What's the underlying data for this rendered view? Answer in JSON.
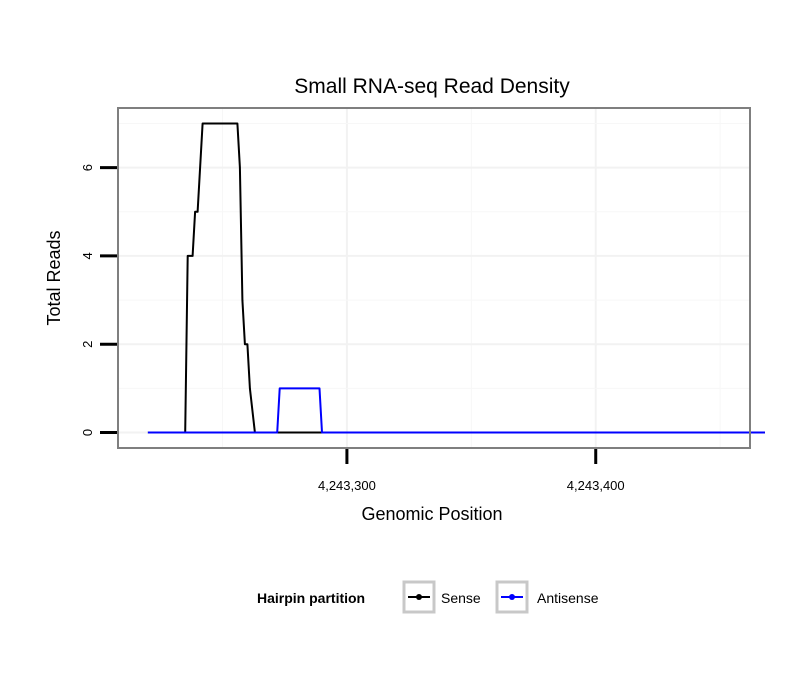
{
  "chart_data": {
    "type": "line",
    "title": "Small RNA-seq Read Density",
    "xlabel": "Genomic Position",
    "ylabel": "Total Reads",
    "xlim": [
      4243208,
      4243462
    ],
    "ylim": [
      -0.35,
      7.35
    ],
    "x_ticks": [
      4243300,
      4243400
    ],
    "x_tick_labels": [
      "4,243,300",
      "4,243,400"
    ],
    "y_ticks": [
      0,
      2,
      4,
      6
    ],
    "y_tick_labels": [
      "0",
      "2",
      "4",
      "6"
    ],
    "grid": true,
    "legend": {
      "title": "Hairpin partition",
      "position": "bottom",
      "entries": [
        "Sense",
        "Antisense"
      ]
    },
    "series": [
      {
        "name": "Sense",
        "color": "#000000",
        "x": [
          4243220,
          4243235,
          4243236,
          4243238,
          4243239,
          4243240,
          4243242,
          4243256,
          4243257,
          4243258,
          4243259,
          4243260,
          4243261,
          4243263,
          4243270,
          4243300,
          4243400,
          4243468
        ],
        "y": [
          0,
          0,
          4,
          4,
          5,
          5,
          7,
          7,
          6,
          3,
          2,
          2,
          1,
          0,
          0,
          0,
          0,
          0
        ]
      },
      {
        "name": "Antisense",
        "color": "#0000ff",
        "x": [
          4243220,
          4243272,
          4243273,
          4243289,
          4243290,
          4243300,
          4243468
        ],
        "y": [
          0,
          0,
          1,
          1,
          0,
          0,
          0
        ]
      }
    ]
  }
}
